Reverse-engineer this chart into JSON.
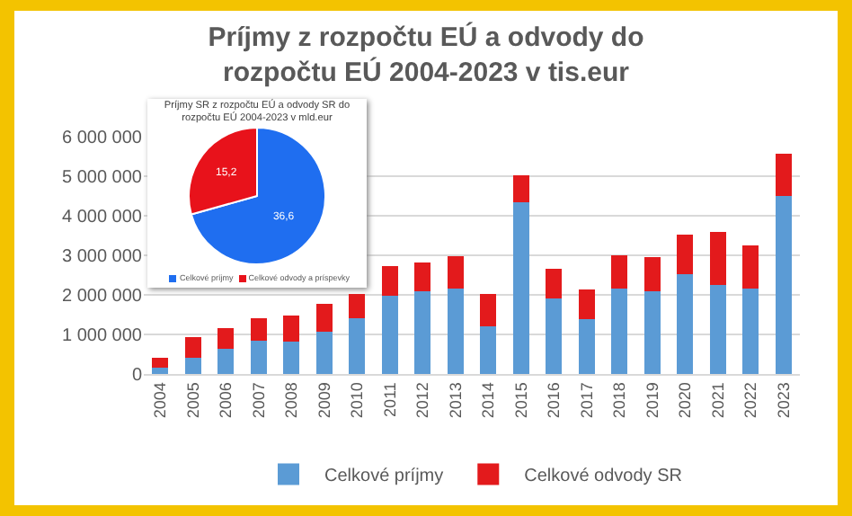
{
  "chart_data": [
    {
      "type": "bar",
      "title": "Príjmy z rozpočtu EÚ a odvody do rozpočtu EÚ 2004-2023 v tis.eur",
      "stacked": true,
      "categories": [
        "2004",
        "2005",
        "2006",
        "2007",
        "2008",
        "2009",
        "2010",
        "2011",
        "2012",
        "2013",
        "2014",
        "2015",
        "2016",
        "2017",
        "2018",
        "2019",
        "2020",
        "2021",
        "2022",
        "2023"
      ],
      "series": [
        {
          "name": "Celkové príjmy",
          "color": "#5b9bd5",
          "values": [
            150000,
            420000,
            630000,
            830000,
            820000,
            1060000,
            1400000,
            1980000,
            2080000,
            2160000,
            1210000,
            4340000,
            1920000,
            1390000,
            2160000,
            2100000,
            2520000,
            2250000,
            2160000,
            4490000
          ]
        },
        {
          "name": "Celkové odvody SR",
          "color": "#e31a1c",
          "values": [
            260000,
            520000,
            530000,
            570000,
            650000,
            710000,
            620000,
            740000,
            740000,
            820000,
            810000,
            690000,
            750000,
            740000,
            830000,
            850000,
            1000000,
            1330000,
            1090000,
            1080000
          ]
        }
      ],
      "ylim": [
        0,
        6000000
      ],
      "yticks": [
        0,
        {
          "value": 1000000,
          "label": "1 000 000"
        },
        {
          "value": 2000000,
          "label": "2 000 000"
        },
        {
          "value": 3000000,
          "label": "3 000 000"
        },
        {
          "value": 4000000,
          "label": "4 000 000"
        },
        {
          "value": 5000000,
          "label": "5 000 000"
        },
        {
          "value": 6000000,
          "label": "6 000 000"
        }
      ],
      "grid": "y",
      "legend": "bottom"
    },
    {
      "type": "pie",
      "title": "Príjmy SR z rozpočtu EÚ a odvody SR do rozpočtu EÚ 2004-2023 v mld.eur",
      "categories": [
        "Celkové príjmy",
        "Celkové odvody a príspevky"
      ],
      "values": [
        36.6,
        15.2
      ],
      "colors": [
        "#1f6ef0",
        "#e8121b"
      ],
      "value_labels": [
        "36,6",
        "15,2"
      ],
      "legend": "bottom"
    }
  ]
}
